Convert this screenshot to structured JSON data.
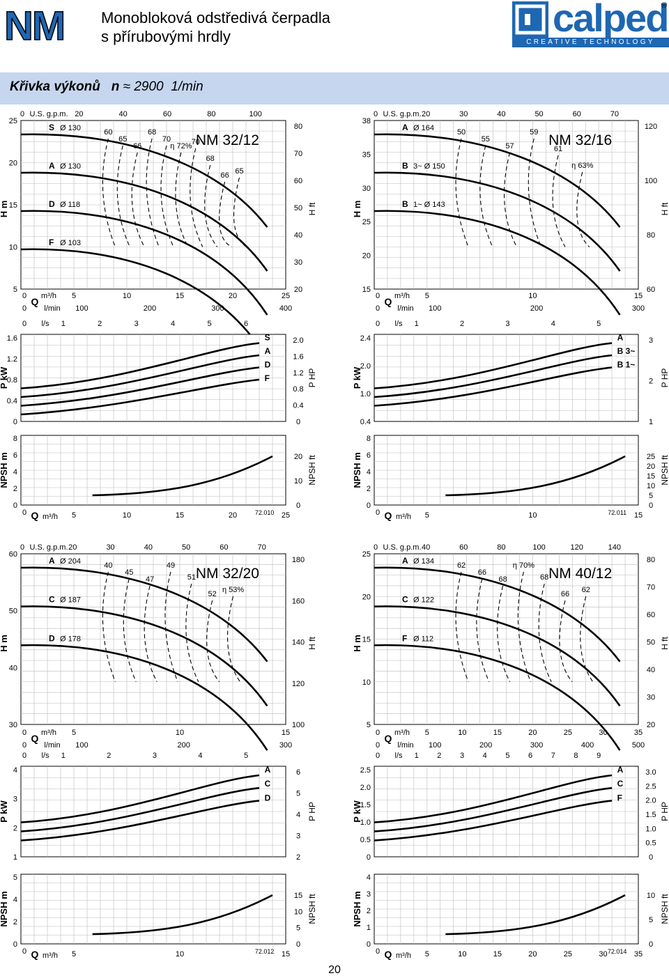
{
  "header": {
    "code": "NM",
    "title_line1": "Monobloková odstředivá čerpadla",
    "title_line2": "s přírubovými hrdly"
  },
  "brand": {
    "name": "calpeda",
    "tagline": "CREATIVE TECHNOLOGY",
    "reg": "®"
  },
  "section": {
    "label": "Křivka výkonů",
    "n_symbol": "n",
    "approx": "≈",
    "speed": "2900",
    "unit": "1/min"
  },
  "page_number": "20",
  "panels": [
    {
      "id": "nm32-12",
      "model": "NM 32/12",
      "code": "72.010",
      "top": {
        "h_left": [
          "25",
          "20",
          "15",
          "10",
          "5"
        ],
        "h_right": [
          "80",
          "70",
          "60",
          "50",
          "40",
          "30",
          "20"
        ],
        "eff": [
          "60",
          "65",
          "66",
          "68",
          "70",
          "η 72%",
          "70",
          "68",
          "66",
          "65"
        ],
        "imp": [
          {
            "l": "S",
            "d": "Ø 130"
          },
          {
            "l": "A",
            "d": "Ø 130"
          },
          {
            "l": "D",
            "d": "Ø 118"
          },
          {
            "l": "F",
            "d": "Ø 103"
          }
        ],
        "rpm": [
          "0",
          "U.S. g.p.m.",
          "20",
          "40",
          "60",
          "80",
          "100"
        ],
        "q": [
          "0",
          "Q",
          "m³/h",
          "5",
          "10",
          "15",
          "20",
          "25"
        ],
        "lmin": [
          "0",
          "l/min",
          "100",
          "200",
          "300",
          "400"
        ]
      },
      "power": {
        "ls": [
          "0",
          "l/s",
          "1",
          "2",
          "3",
          "4",
          "5",
          "6"
        ],
        "pl": [
          "1.6",
          "1.2",
          "0.8",
          "0.4",
          "0"
        ],
        "pr": [
          "2.0",
          "1.6",
          "1.2",
          "0.8",
          "0.4",
          "0"
        ],
        "curves": [
          "S",
          "A",
          "D",
          "F"
        ]
      },
      "npsh": {
        "nl": [
          "8",
          "6",
          "4",
          "2",
          "0"
        ],
        "nr": [
          "20",
          "10",
          "0"
        ],
        "q": [
          "0",
          "Q",
          "m³/h",
          "5",
          "10",
          "15",
          "20",
          "25"
        ]
      }
    },
    {
      "id": "nm32-16",
      "model": "NM 32/16",
      "code": "72.011",
      "top": {
        "h_left": [
          "38",
          "35",
          "30",
          "25",
          "20",
          "15"
        ],
        "h_right": [
          "120",
          "100",
          "80",
          "60"
        ],
        "eff": [
          "50",
          "55",
          "57",
          "59",
          "61",
          "η 63%"
        ],
        "imp": [
          {
            "l": "A",
            "d": "Ø 164"
          },
          {
            "l": "B",
            "d": "3~ Ø 150"
          },
          {
            "l": "B",
            "d": "1~ Ø 143"
          }
        ],
        "rpm": [
          "0",
          "U.S. g.p.m.",
          "20",
          "30",
          "40",
          "50",
          "60",
          "70"
        ],
        "q": [
          "0",
          "Q",
          "m³/h",
          "5",
          "10",
          "15"
        ],
        "lmin": [
          "0",
          "l/min",
          "100",
          "200",
          "300"
        ]
      },
      "power": {
        "ls": [
          "0",
          "l/s",
          "1",
          "2",
          "3",
          "4",
          "5"
        ],
        "pl": [
          "2.4",
          "2.0",
          "1.0",
          "0.4"
        ],
        "pr": [
          "3",
          "2",
          "1"
        ],
        "curves": [
          "A",
          "B 3~",
          "B 1~"
        ]
      },
      "npsh": {
        "nl": [
          "8",
          "6",
          "4",
          "2",
          "0"
        ],
        "nr": [
          "25",
          "20",
          "15",
          "10",
          "5",
          "0"
        ],
        "q": [
          "0",
          "Q",
          "m³/h",
          "5",
          "10",
          "15"
        ]
      }
    },
    {
      "id": "nm32-20",
      "model": "NM 32/20",
      "code": "72.012",
      "top": {
        "h_left": [
          "60",
          "50",
          "40",
          "30"
        ],
        "h_right": [
          "180",
          "160",
          "140",
          "120",
          "100"
        ],
        "eff": [
          "40",
          "45",
          "47",
          "49",
          "51",
          "52",
          "η 53%"
        ],
        "imp": [
          {
            "l": "A",
            "d": "Ø 204"
          },
          {
            "l": "C",
            "d": "Ø 187"
          },
          {
            "l": "D",
            "d": "Ø 178"
          }
        ],
        "rpm": [
          "0",
          "U.S. g.p.m.",
          "20",
          "30",
          "40",
          "50",
          "60",
          "70"
        ],
        "q": [
          "0",
          "Q",
          "m³/h",
          "5",
          "10",
          "15"
        ],
        "lmin": [
          "0",
          "l/min",
          "100",
          "200",
          "300"
        ]
      },
      "power": {
        "ls": [
          "0",
          "l/s",
          "1",
          "2",
          "3",
          "4",
          "5"
        ],
        "pl": [
          "4",
          "3",
          "2",
          "1"
        ],
        "pr": [
          "6",
          "5",
          "4",
          "3",
          "2"
        ],
        "curves": [
          "A",
          "C",
          "D"
        ]
      },
      "npsh": {
        "nl": [
          "5",
          "4",
          "2",
          "0"
        ],
        "nr": [
          "15",
          "10",
          "5",
          "0"
        ],
        "q": [
          "0",
          "Q",
          "m³/h",
          "5",
          "10",
          "15"
        ]
      }
    },
    {
      "id": "nm40-12",
      "model": "NM 40/12",
      "code": "72.014",
      "top": {
        "h_left": [
          "25",
          "20",
          "15",
          "10",
          "5"
        ],
        "h_right": [
          "80",
          "70",
          "60",
          "50",
          "40",
          "30",
          "20"
        ],
        "eff": [
          "62",
          "66",
          "68",
          "η 70%",
          "68",
          "66",
          "62"
        ],
        "imp": [
          {
            "l": "A",
            "d": "Ø 134"
          },
          {
            "l": "C",
            "d": "Ø 122"
          },
          {
            "l": "F",
            "d": "Ø 112"
          }
        ],
        "rpm": [
          "0",
          "U.S. g.p.m.",
          "40",
          "60",
          "80",
          "100",
          "120",
          "140"
        ],
        "q": [
          "0",
          "Q",
          "m³/h",
          "5",
          "10",
          "15",
          "20",
          "25",
          "30",
          "35"
        ],
        "lmin": [
          "0",
          "l/min",
          "100",
          "200",
          "300",
          "400",
          "500"
        ]
      },
      "power": {
        "ls": [
          "0",
          "l/s",
          "1",
          "2",
          "3",
          "4",
          "5",
          "6",
          "7",
          "8",
          "9"
        ],
        "pl": [
          "2.5",
          "2.0",
          "1.5",
          "1.0",
          "0.5",
          "0"
        ],
        "pr": [
          "3.0",
          "2.5",
          "2.0",
          "1.5",
          "1.0",
          "0.5",
          "0"
        ],
        "curves": [
          "A",
          "C",
          "F"
        ]
      },
      "npsh": {
        "nl": [
          "4",
          "3",
          "2",
          "1",
          "0"
        ],
        "nr": [
          "10",
          "5",
          "0"
        ],
        "q": [
          "0",
          "Q",
          "m³/h",
          "5",
          "10",
          "15",
          "20",
          "25",
          "30",
          "35"
        ]
      }
    }
  ],
  "axis": {
    "h_left": "H m",
    "h_right": "H ft",
    "p_left": "P kW",
    "p_right": "P HP",
    "n_left": "NPSH m",
    "n_right": "NPSH ft"
  }
}
